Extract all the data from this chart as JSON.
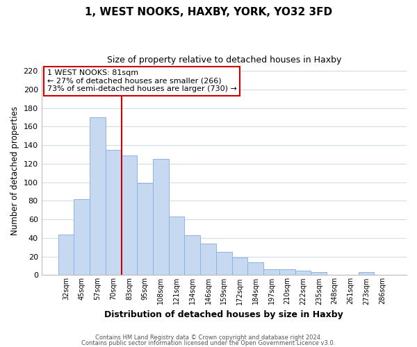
{
  "title_line1": "1, WEST NOOKS, HAXBY, YORK, YO32 3FD",
  "title_line2": "Size of property relative to detached houses in Haxby",
  "xlabel": "Distribution of detached houses by size in Haxby",
  "ylabel": "Number of detached properties",
  "bar_labels": [
    "32sqm",
    "45sqm",
    "57sqm",
    "70sqm",
    "83sqm",
    "95sqm",
    "108sqm",
    "121sqm",
    "134sqm",
    "146sqm",
    "159sqm",
    "172sqm",
    "184sqm",
    "197sqm",
    "210sqm",
    "222sqm",
    "235sqm",
    "248sqm",
    "261sqm",
    "273sqm",
    "286sqm"
  ],
  "bar_values": [
    44,
    82,
    170,
    135,
    129,
    99,
    125,
    63,
    43,
    34,
    25,
    19,
    14,
    6,
    6,
    5,
    3,
    0,
    0,
    3,
    0
  ],
  "bar_color": "#c6d9f0",
  "bar_edge_color": "#8db3e2",
  "vline_index": 3,
  "vline_color": "#cc0000",
  "ylim": [
    0,
    225
  ],
  "yticks": [
    0,
    20,
    40,
    60,
    80,
    100,
    120,
    140,
    160,
    180,
    200,
    220
  ],
  "annotation_title": "1 WEST NOOKS: 81sqm",
  "annotation_line1": "← 27% of detached houses are smaller (266)",
  "annotation_line2": "73% of semi-detached houses are larger (730) →",
  "annotation_box_color": "#ffffff",
  "annotation_box_edge": "#cc0000",
  "footer_line1": "Contains HM Land Registry data © Crown copyright and database right 2024.",
  "footer_line2": "Contains public sector information licensed under the Open Government Licence v3.0.",
  "background_color": "#ffffff",
  "grid_color": "#d0dce8"
}
